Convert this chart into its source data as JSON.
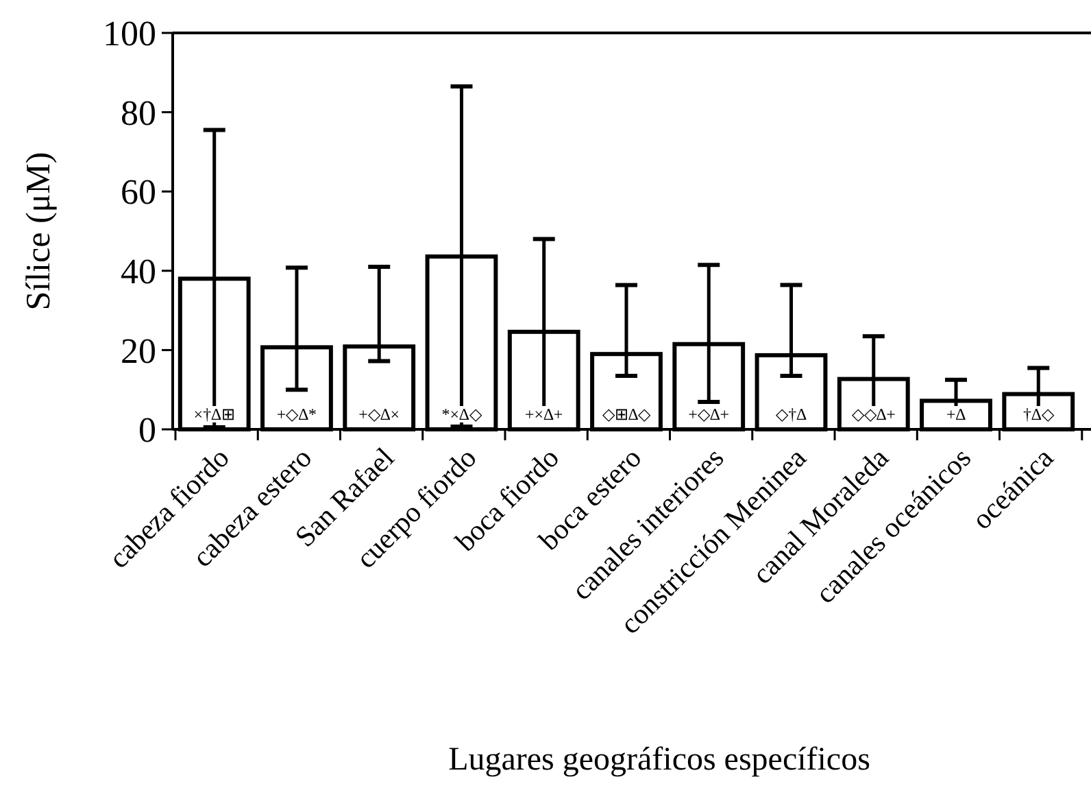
{
  "chart_data": {
    "type": "bar",
    "categories": [
      "cabeza fiordo",
      "cabeza estero",
      "San Rafael",
      "cuerpo fiordo",
      "boca fiordo",
      "boca estero",
      "canales interiores",
      "constricción Meninea",
      "canal Moraleda",
      "canales oceánicos",
      "oceánica"
    ],
    "values": [
      38,
      20.7,
      20.9,
      43.6,
      24.6,
      19,
      21.5,
      18.7,
      12.7,
      7.2,
      8.9
    ],
    "errors": [
      [
        0.5,
        75.5
      ],
      [
        10,
        40.8
      ],
      [
        17.2,
        41
      ],
      [
        0.7,
        86.5
      ],
      [
        2.8,
        48
      ],
      [
        13.5,
        36.4
      ],
      [
        6.9,
        41.5
      ],
      [
        13.5,
        36.4
      ],
      [
        3.9,
        23.5
      ],
      [
        5.1,
        12.5
      ],
      [
        3,
        15.5
      ]
    ],
    "color": "#ffffff",
    "xlabel": "Lugares geográficos específicos",
    "ylabel": "Sílice (μM)",
    "ylim": [
      0,
      100
    ],
    "yticks": [
      0,
      20,
      40,
      60,
      80,
      100
    ],
    "grid": false,
    "annotations": [
      "×†∆⊞",
      "+◇∆*",
      "+◇∆×",
      "*×∆◇",
      "+×∆+",
      "◇⊞∆◇",
      "+◇∆+",
      "◇†∆",
      "◇◇∆+",
      "+∆",
      "†∆◇"
    ]
  }
}
